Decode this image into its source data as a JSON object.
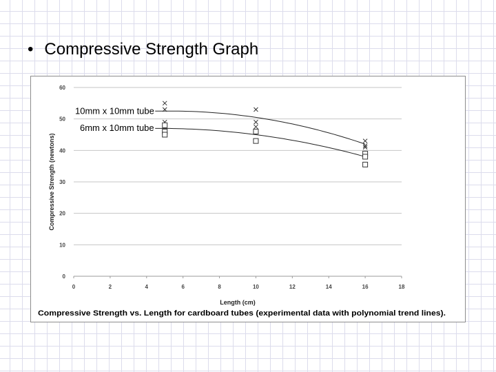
{
  "slide": {
    "bullet": "•",
    "title": "Compressive Strength Graph"
  },
  "chart_data": {
    "type": "scatter",
    "title": "",
    "caption": "Compressive Strength vs. Length for cardboard tubes (experimental data with polynomial trend lines).",
    "xlabel": "Length (cm)",
    "ylabel": "Compressive Strength (newtons)",
    "xlim": [
      0,
      18
    ],
    "ylim": [
      0,
      60
    ],
    "xticks": [
      0,
      2,
      4,
      6,
      8,
      10,
      12,
      14,
      16,
      18
    ],
    "yticks": [
      0,
      10,
      20,
      30,
      40,
      50,
      60
    ],
    "grid": "horizontal",
    "series": [
      {
        "name": "10mm x 10mm tube",
        "marker": "x",
        "points": [
          [
            5,
            55
          ],
          [
            5,
            53
          ],
          [
            5,
            49
          ],
          [
            10,
            53
          ],
          [
            10,
            49
          ],
          [
            10,
            47.5
          ],
          [
            16,
            43
          ],
          [
            16,
            41
          ],
          [
            16,
            41.5
          ]
        ],
        "trend": [
          [
            5,
            52.5
          ],
          [
            10,
            50.5
          ],
          [
            16,
            42
          ]
        ]
      },
      {
        "name": "6mm x 10mm tube",
        "marker": "square",
        "points": [
          [
            5,
            48
          ],
          [
            5,
            46
          ],
          [
            5,
            45
          ],
          [
            10,
            46
          ],
          [
            10,
            43
          ],
          [
            16,
            39
          ],
          [
            16,
            38
          ],
          [
            16,
            35.5
          ]
        ],
        "trend": [
          [
            5,
            47
          ],
          [
            10,
            45
          ],
          [
            16,
            38
          ]
        ]
      }
    ]
  }
}
